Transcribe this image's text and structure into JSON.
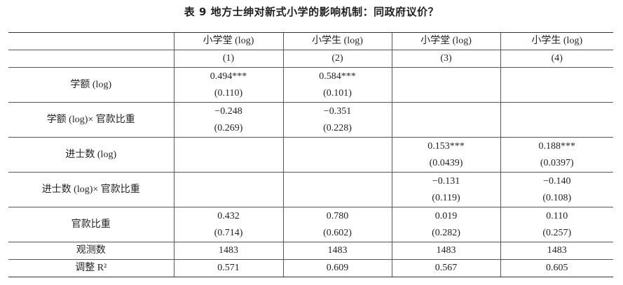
{
  "title": "表 9  地方士绅对新式小学的影响机制：同政府议价？",
  "table": {
    "header_names": [
      "小学堂 (log)",
      "小学生 (log)",
      "小学堂 (log)",
      "小学生 (log)"
    ],
    "header_numbers": [
      "(1)",
      "(2)",
      "(3)",
      "(4)"
    ],
    "rows": [
      {
        "label": "学额 (log)",
        "cells": [
          [
            "0.494***",
            "(0.110)"
          ],
          [
            "0.584***",
            "(0.101)"
          ],
          null,
          null
        ]
      },
      {
        "label": "学额 (log)× 官款比重",
        "cells": [
          [
            "−0.248",
            "(0.269)"
          ],
          [
            "−0.351",
            "(0.228)"
          ],
          null,
          null
        ]
      },
      {
        "label": "进士数 (log)",
        "cells": [
          null,
          null,
          [
            "0.153***",
            "(0.0439)"
          ],
          [
            "0.188***",
            "(0.0397)"
          ]
        ]
      },
      {
        "label": "进士数 (log)× 官款比重",
        "cells": [
          null,
          null,
          [
            "−0.131",
            "(0.119)"
          ],
          [
            "−0.140",
            "(0.108)"
          ]
        ]
      },
      {
        "label": "官款比重",
        "cells": [
          [
            "0.432",
            "(0.714)"
          ],
          [
            "0.780",
            "(0.602)"
          ],
          [
            "0.019",
            "(0.282)"
          ],
          [
            "0.110",
            "(0.257)"
          ]
        ]
      },
      {
        "label": "观测数",
        "cells": [
          [
            "1483"
          ],
          [
            "1483"
          ],
          [
            "1483"
          ],
          [
            "1483"
          ]
        ]
      },
      {
        "label": "调整 R²",
        "cells": [
          [
            "0.571"
          ],
          [
            "0.609"
          ],
          [
            "0.567"
          ],
          [
            "0.605"
          ]
        ]
      }
    ]
  }
}
